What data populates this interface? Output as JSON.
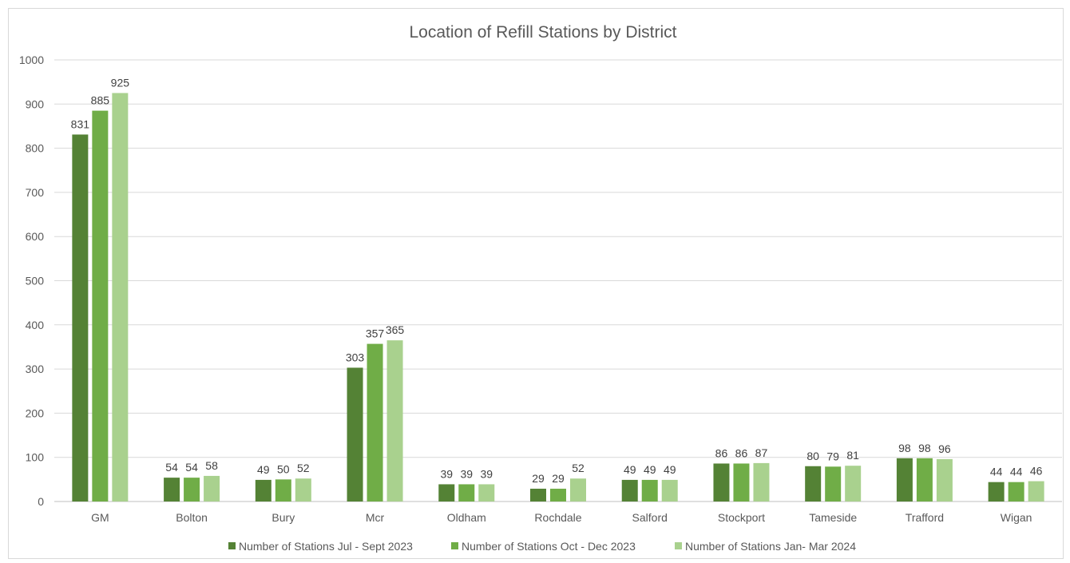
{
  "chart_data": {
    "type": "bar",
    "title": "Location of Refill Stations by District",
    "xlabel": "",
    "ylabel": "",
    "ylim": [
      0,
      1000
    ],
    "yticks": [
      0,
      100,
      200,
      300,
      400,
      500,
      600,
      700,
      800,
      900,
      1000
    ],
    "grid": true,
    "legend_position": "bottom",
    "categories": [
      "GM",
      "Bolton",
      "Bury",
      "Mcr",
      "Oldham",
      "Rochdale",
      "Salford",
      "Stockport",
      "Tameside",
      "Trafford",
      "Wigan"
    ],
    "series": [
      {
        "name": "Number of Stations Jul - Sept 2023",
        "color": "#548235",
        "values": [
          831,
          54,
          49,
          303,
          39,
          29,
          49,
          86,
          80,
          98,
          44
        ]
      },
      {
        "name": "Number of Stations Oct - Dec 2023",
        "color": "#70ad47",
        "values": [
          885,
          54,
          50,
          357,
          39,
          29,
          49,
          86,
          79,
          98,
          44
        ]
      },
      {
        "name": "Number of Stations Jan- Mar 2024",
        "color": "#a9d18e",
        "values": [
          925,
          58,
          52,
          365,
          39,
          52,
          49,
          87,
          81,
          96,
          46
        ]
      }
    ]
  }
}
